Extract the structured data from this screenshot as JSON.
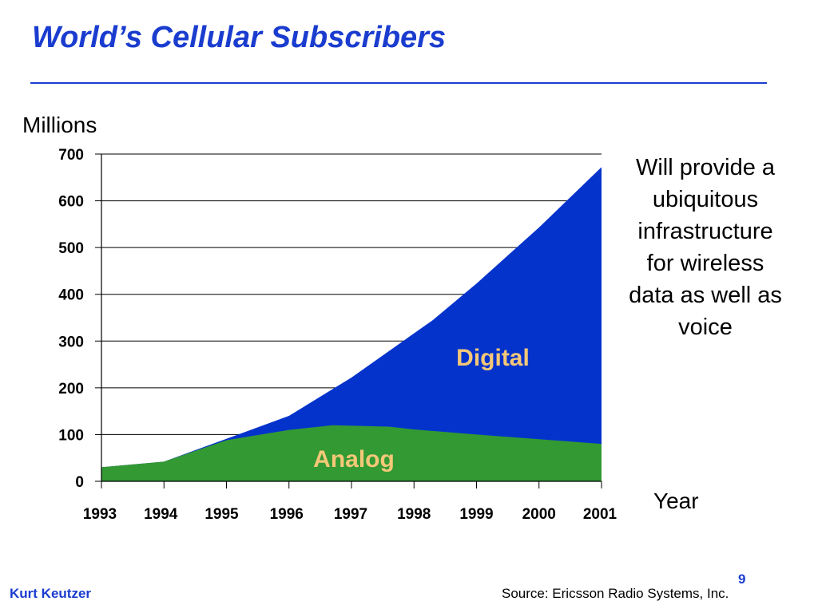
{
  "slide": {
    "title": "World’s Cellular Subscribers",
    "note": "Will provide a ubiquitous infrastructure for wireless data as well as voice",
    "author": "Kurt Keutzer",
    "page_number": "9",
    "source": "Source: Ericsson Radio Systems, Inc."
  },
  "colors": {
    "title": "#1a3ccf",
    "digital": "#0433cc",
    "analog": "#339933",
    "area_label": "#f5c878"
  },
  "chart_data": {
    "type": "area",
    "stacked": true,
    "title": "World’s Cellular Subscribers",
    "xlabel": "Year",
    "ylabel": "Millions",
    "categories": [
      "1993",
      "1994",
      "1995",
      "1996",
      "1997",
      "1998",
      "1999",
      "2000",
      "2001"
    ],
    "x_range": [
      1993,
      2001
    ],
    "ylim": [
      0,
      700
    ],
    "yticks": [
      "0",
      "100",
      "200",
      "300",
      "400",
      "500",
      "600",
      "700"
    ],
    "grid": true,
    "series": [
      {
        "name": "Analog",
        "x": [
          1993,
          1994,
          1995,
          1996,
          1996.7,
          1997.6,
          1998,
          1999,
          2000,
          2001
        ],
        "values": [
          30,
          42,
          88,
          110,
          120,
          117,
          111,
          100,
          90,
          80
        ]
      },
      {
        "name": "Digital",
        "x": [
          1993,
          1994,
          1995,
          1996,
          1997,
          1998.3,
          1999,
          2000,
          2001
        ],
        "values": [
          0,
          0,
          3,
          30,
          103,
          237,
          323,
          453,
          592
        ]
      }
    ],
    "annotations": [
      "Digital",
      "Analog"
    ]
  }
}
